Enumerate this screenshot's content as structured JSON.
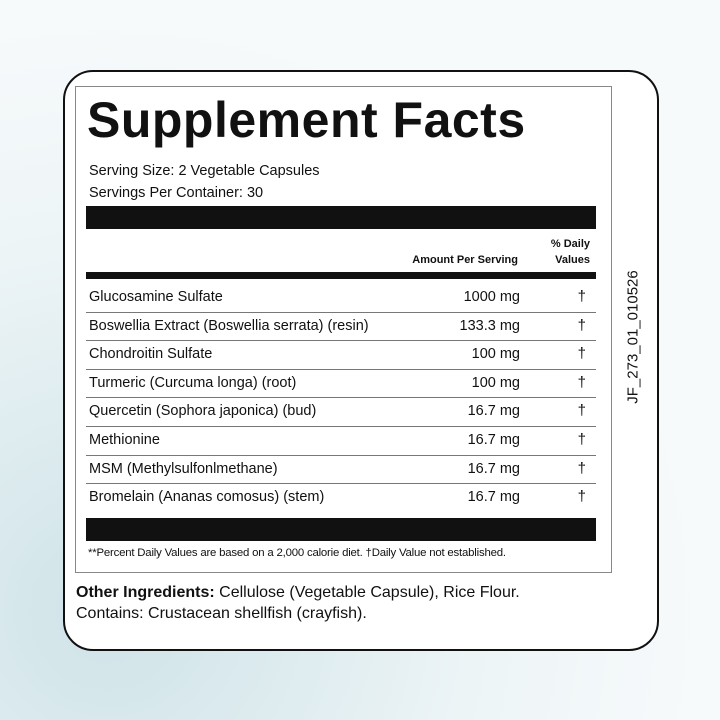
{
  "title": "Supplement Facts",
  "serving_size": "Serving Size: 2 Vegetable Capsules",
  "servings_per_container": "Servings Per Container: 30",
  "header": {
    "amount": "Amount Per Serving",
    "dv_line1": "% Daily",
    "dv_line2": "Values"
  },
  "rows": [
    {
      "name": "Glucosamine Sulfate",
      "amount": "1000 mg",
      "dv": "†"
    },
    {
      "name": "Boswellia Extract (Boswellia serrata) (resin)",
      "amount": "133.3 mg",
      "dv": "†"
    },
    {
      "name": "Chondroitin Sulfate",
      "amount": "100 mg",
      "dv": "†"
    },
    {
      "name": "Turmeric (Curcuma longa) (root)",
      "amount": "100 mg",
      "dv": "†"
    },
    {
      "name": "Quercetin (Sophora japonica) (bud)",
      "amount": "16.7 mg",
      "dv": "†"
    },
    {
      "name": "Methionine",
      "amount": "16.7 mg",
      "dv": "†"
    },
    {
      "name": "MSM (Methylsulfonlmethane)",
      "amount": "16.7 mg",
      "dv": "†"
    },
    {
      "name": "Bromelain (Ananas comosus) (stem)",
      "amount": "16.7 mg",
      "dv": "†"
    }
  ],
  "footnote": "**Percent Daily Values are based on a 2,000 calorie diet. †Daily Value not established.",
  "other_label": "Other Ingredients:",
  "other_text": " Cellulose (Vegetable Capsule), Rice Flour.",
  "contains": "Contains: Crustacean shellfish (crayfish).",
  "code": "JF_273_01_010526"
}
